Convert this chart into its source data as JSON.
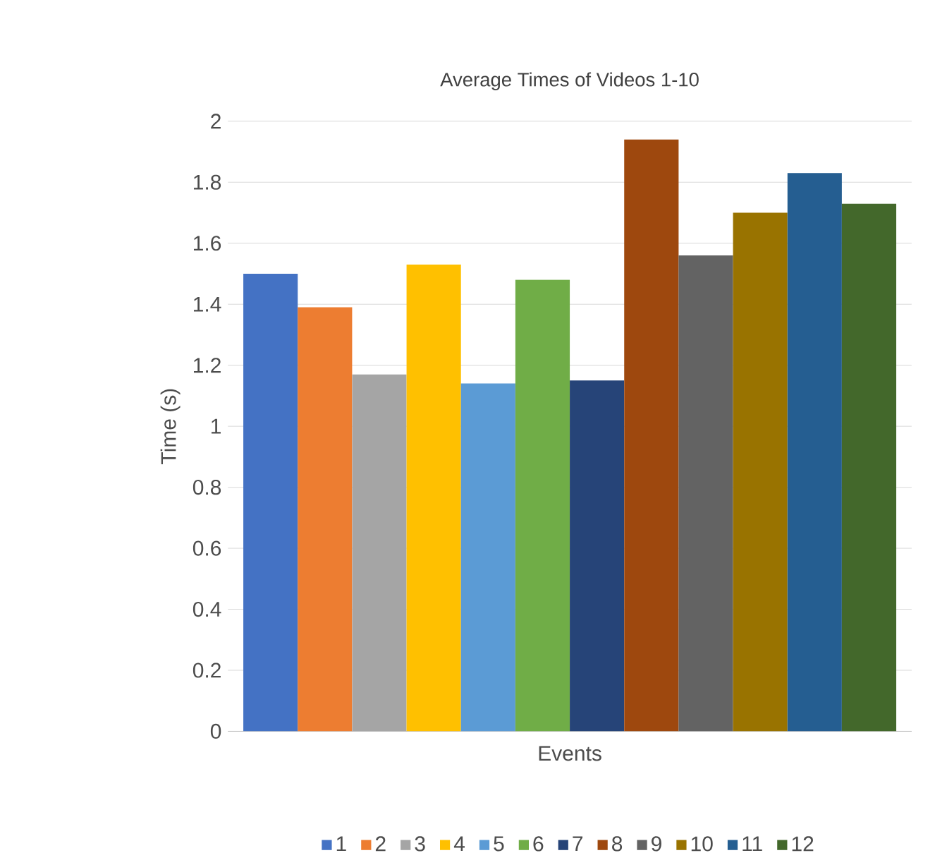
{
  "chart_data": {
    "type": "bar",
    "title": "Average Times of Videos 1-10",
    "xlabel": "Events",
    "ylabel": "Time (s)",
    "categories": [
      null
    ],
    "series": [
      {
        "name": "1",
        "color": "#4472c4",
        "values": [
          1.5
        ]
      },
      {
        "name": "2",
        "color": "#ed7d31",
        "values": [
          1.39
        ]
      },
      {
        "name": "3",
        "color": "#a5a5a5",
        "values": [
          1.17
        ]
      },
      {
        "name": "4",
        "color": "#ffc000",
        "values": [
          1.53
        ]
      },
      {
        "name": "5",
        "color": "#5b9bd5",
        "values": [
          1.14
        ]
      },
      {
        "name": "6",
        "color": "#70ad47",
        "values": [
          1.48
        ]
      },
      {
        "name": "7",
        "color": "#264478",
        "values": [
          1.15
        ]
      },
      {
        "name": "8",
        "color": "#9e480e",
        "values": [
          1.94
        ]
      },
      {
        "name": "9",
        "color": "#636363",
        "values": [
          1.56
        ]
      },
      {
        "name": "10",
        "color": "#997300",
        "values": [
          1.7
        ]
      },
      {
        "name": "11",
        "color": "#255e91",
        "values": [
          1.83
        ]
      },
      {
        "name": "12",
        "color": "#43682b",
        "values": [
          1.73
        ]
      }
    ],
    "ylim": [
      0,
      2
    ],
    "yticks": [
      0,
      0.2,
      0.4,
      0.6,
      0.8,
      1,
      1.2,
      1.4,
      1.6,
      1.8,
      2
    ],
    "grid": "y",
    "legend": "bottom"
  }
}
